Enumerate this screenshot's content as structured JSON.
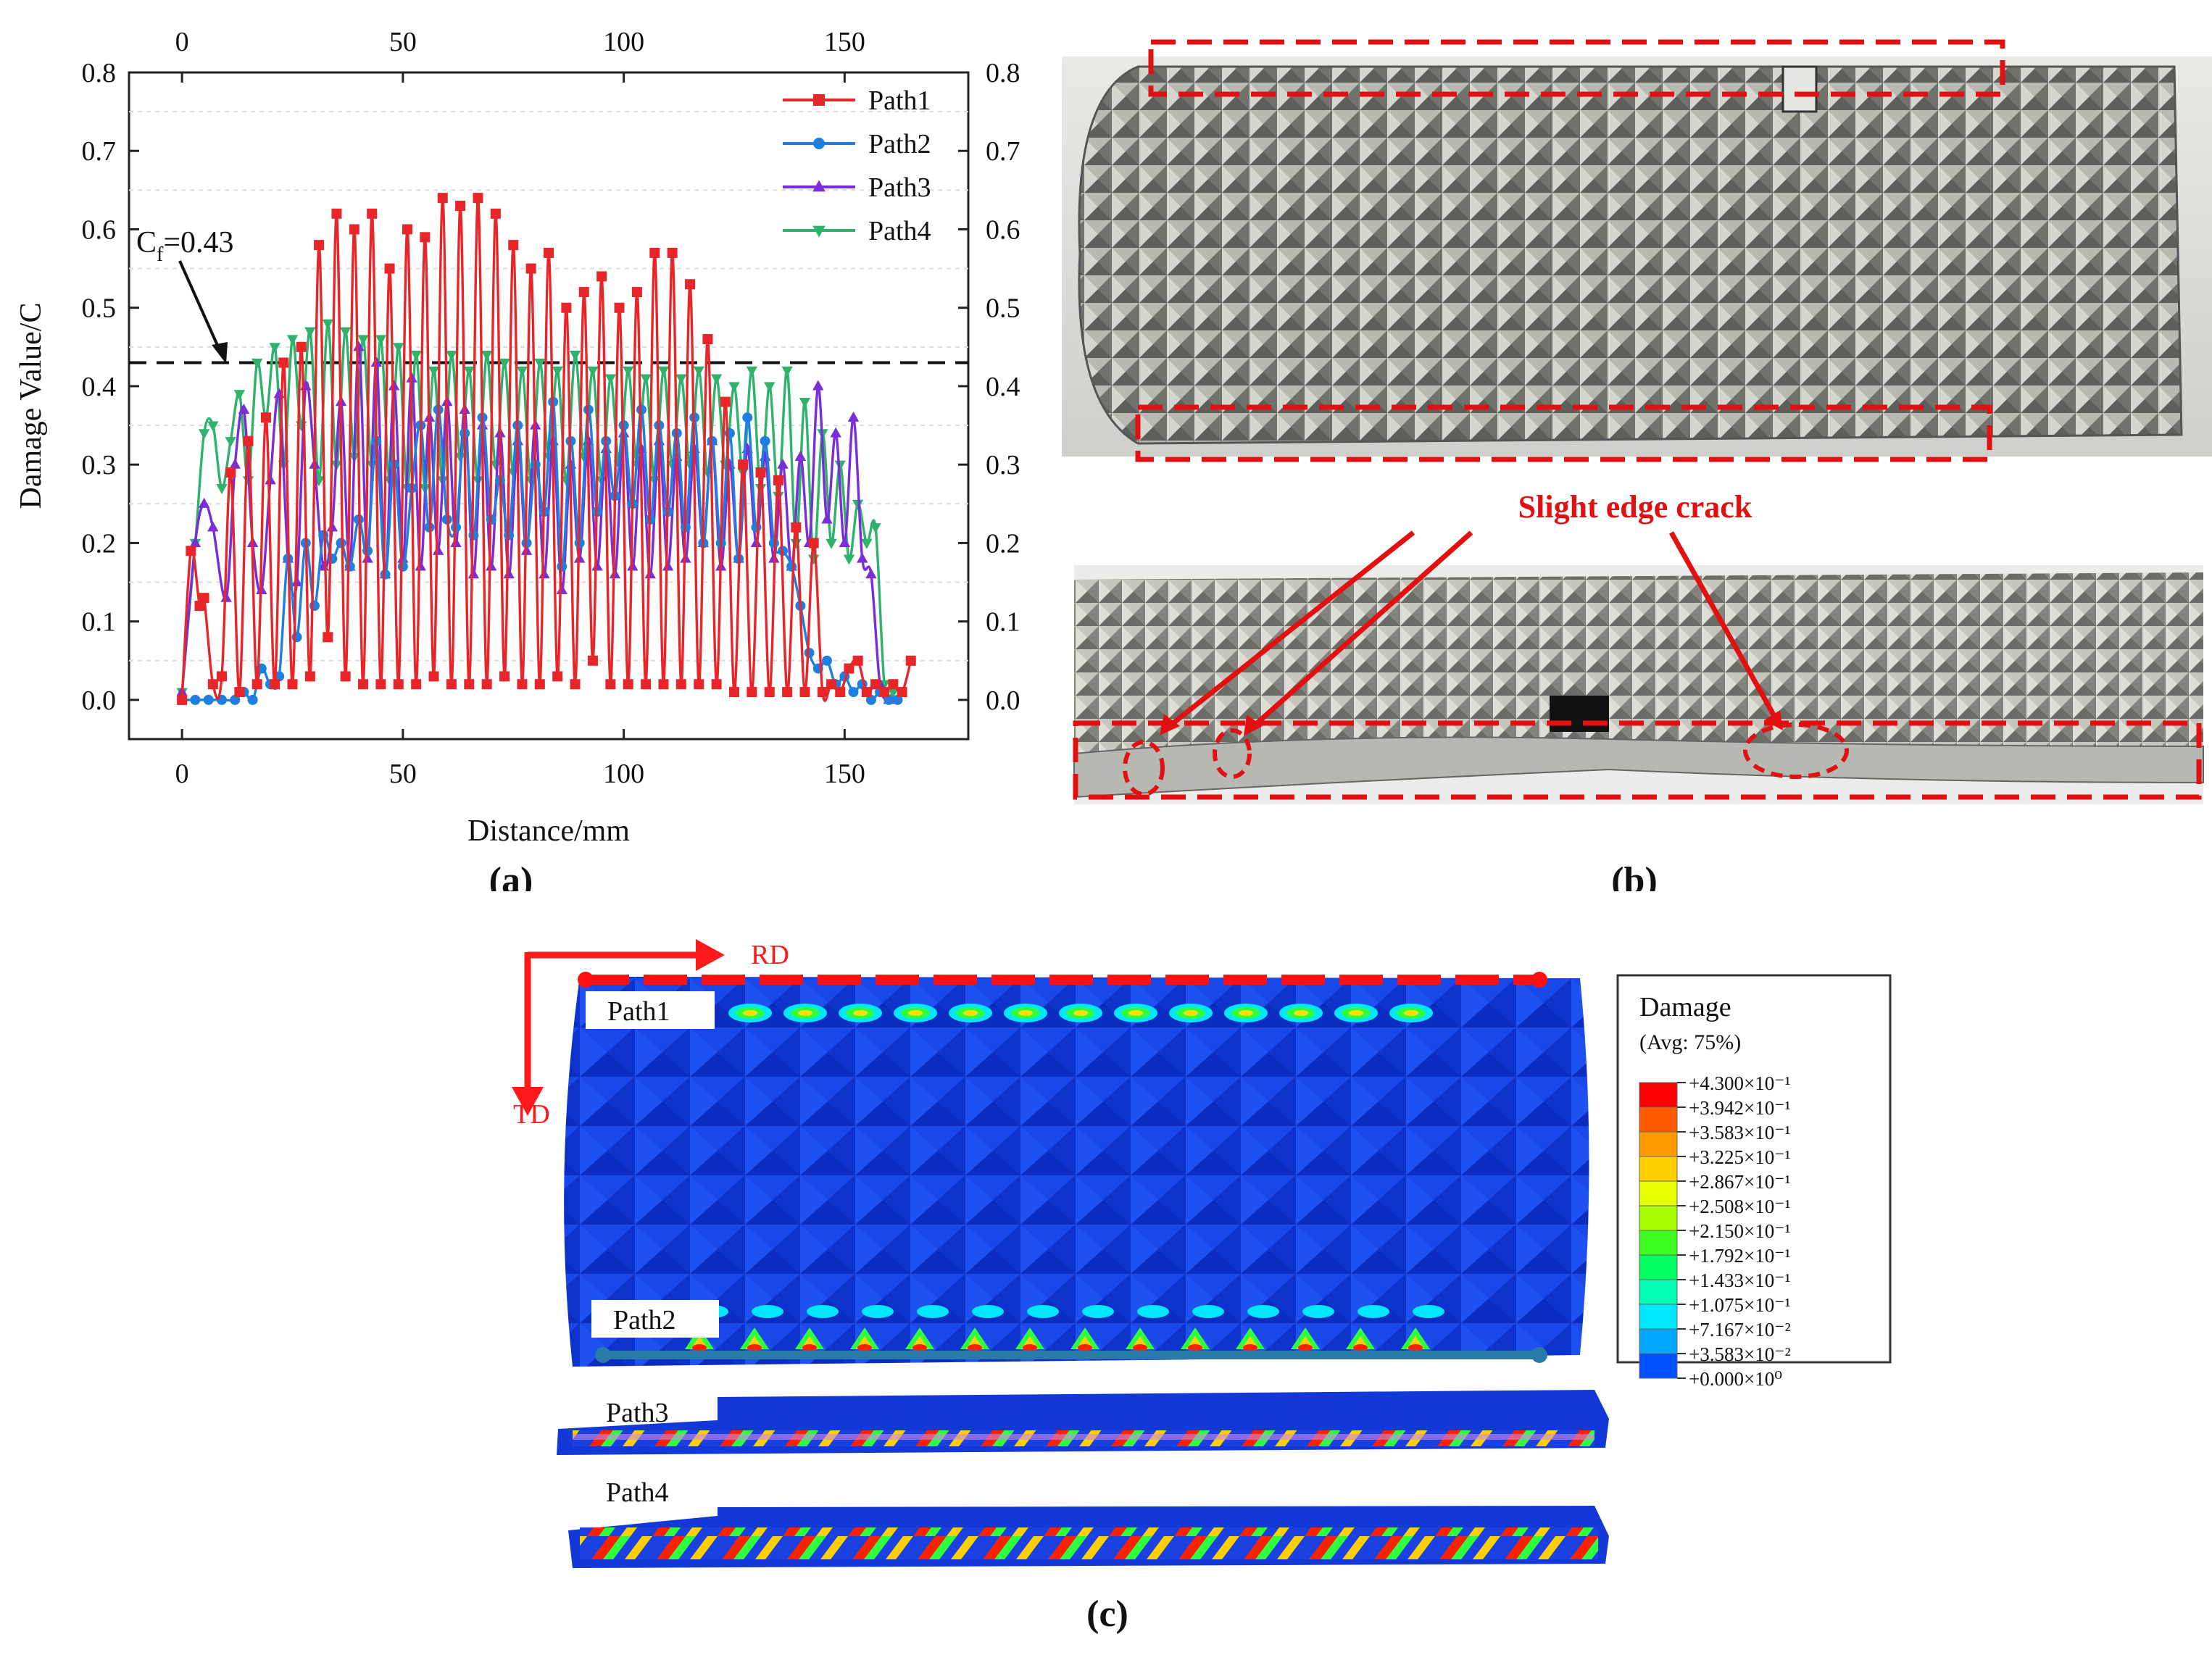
{
  "panel_labels": {
    "a": "(a)",
    "b": "(b)",
    "c": "(c)"
  },
  "chart_data": {
    "type": "line",
    "title": "",
    "xlabel": "Distance/mm",
    "ylabel": "Damage Value/C",
    "xlim": [
      -12,
      178
    ],
    "ylim": [
      -0.05,
      0.8
    ],
    "x_ticks": [
      "0",
      "50",
      "100",
      "150"
    ],
    "x_tick_values": [
      0,
      50,
      100,
      150
    ],
    "y_ticks": [
      "0.0",
      "0.1",
      "0.2",
      "0.3",
      "0.4",
      "0.5",
      "0.6",
      "0.7",
      "0.8"
    ],
    "y_tick_values": [
      0,
      0.1,
      0.2,
      0.3,
      0.4,
      0.5,
      0.6,
      0.7,
      0.8
    ],
    "threshold": {
      "value": 0.43,
      "label_main": "C",
      "label_sub": "f",
      "label_rest": "=0.43"
    },
    "legend_position": "top-right",
    "series": [
      {
        "name": "Path1",
        "color": "#e8262a",
        "marker": "square",
        "x": [
          0,
          2,
          4,
          5,
          7,
          9,
          11,
          13,
          15,
          17,
          19,
          21,
          23,
          25,
          27,
          29,
          31,
          33,
          35,
          37,
          39,
          41,
          43,
          45,
          47,
          49,
          51,
          53,
          55,
          57,
          59,
          61,
          63,
          65,
          67,
          69,
          71,
          73,
          75,
          77,
          79,
          81,
          83,
          85,
          87,
          89,
          91,
          93,
          95,
          97,
          99,
          101,
          103,
          105,
          107,
          109,
          111,
          113,
          115,
          117,
          119,
          121,
          123,
          125,
          127,
          129,
          131,
          133,
          135,
          137,
          139,
          141,
          143,
          145,
          147,
          149,
          151,
          153,
          155,
          157,
          159,
          161,
          163,
          165
        ],
        "values": [
          0,
          0.19,
          0.12,
          0.13,
          0.02,
          0.03,
          0.29,
          0.01,
          0.33,
          0.02,
          0.36,
          0.02,
          0.43,
          0.02,
          0.45,
          0.03,
          0.58,
          0.08,
          0.62,
          0.03,
          0.6,
          0.02,
          0.62,
          0.02,
          0.55,
          0.02,
          0.6,
          0.02,
          0.59,
          0.03,
          0.64,
          0.02,
          0.63,
          0.02,
          0.64,
          0.02,
          0.62,
          0.03,
          0.58,
          0.02,
          0.55,
          0.02,
          0.57,
          0.03,
          0.5,
          0.02,
          0.52,
          0.05,
          0.54,
          0.02,
          0.5,
          0.02,
          0.52,
          0.02,
          0.57,
          0.02,
          0.57,
          0.02,
          0.53,
          0.02,
          0.46,
          0.02,
          0.38,
          0.01,
          0.3,
          0.01,
          0.29,
          0.01,
          0.28,
          0.01,
          0.22,
          0.01,
          0.2,
          0.01,
          0.02,
          0.01,
          0.04,
          0.05,
          0.01,
          0.02,
          0.01,
          0.02,
          0.01,
          0.05
        ]
      },
      {
        "name": "Path2",
        "color": "#1e7fe0",
        "marker": "circle",
        "x": [
          0,
          3,
          6,
          9,
          12,
          14,
          16,
          18,
          20,
          22,
          24,
          26,
          28,
          30,
          32,
          34,
          36,
          38,
          40,
          42,
          44,
          46,
          48,
          50,
          52,
          54,
          56,
          58,
          60,
          62,
          64,
          66,
          68,
          70,
          72,
          74,
          76,
          78,
          80,
          82,
          84,
          86,
          88,
          90,
          92,
          94,
          96,
          98,
          100,
          102,
          104,
          106,
          108,
          110,
          112,
          114,
          116,
          118,
          120,
          122,
          124,
          126,
          128,
          130,
          132,
          134,
          136,
          138,
          140,
          142,
          144,
          146,
          148,
          150,
          152,
          154,
          156,
          158,
          160,
          162
        ],
        "values": [
          0,
          0,
          0,
          0,
          0,
          0.01,
          0,
          0.04,
          0.02,
          0.03,
          0.18,
          0.08,
          0.2,
          0.12,
          0.21,
          0.18,
          0.2,
          0.17,
          0.23,
          0.19,
          0.33,
          0.16,
          0.3,
          0.17,
          0.27,
          0.35,
          0.22,
          0.37,
          0.23,
          0.22,
          0.34,
          0.21,
          0.36,
          0.23,
          0.28,
          0.21,
          0.35,
          0.2,
          0.3,
          0.24,
          0.38,
          0.17,
          0.33,
          0.2,
          0.37,
          0.24,
          0.33,
          0.26,
          0.35,
          0.25,
          0.37,
          0.23,
          0.35,
          0.24,
          0.34,
          0.22,
          0.36,
          0.2,
          0.33,
          0.2,
          0.34,
          0.18,
          0.36,
          0.22,
          0.33,
          0.2,
          0.19,
          0.17,
          0.12,
          0.06,
          0.04,
          0.05,
          0.02,
          0.03,
          0.01,
          0.02,
          0,
          0.01,
          0,
          0
        ]
      },
      {
        "name": "Path3",
        "color": "#7a2ed8",
        "marker": "triangle-up",
        "x": [
          0,
          3,
          5,
          7,
          10,
          12,
          14,
          16,
          18,
          20,
          22,
          24,
          26,
          28,
          30,
          32,
          34,
          36,
          38,
          40,
          42,
          44,
          46,
          48,
          50,
          52,
          54,
          56,
          58,
          60,
          62,
          64,
          66,
          68,
          70,
          72,
          74,
          76,
          78,
          80,
          82,
          84,
          86,
          88,
          90,
          92,
          94,
          96,
          98,
          100,
          102,
          104,
          106,
          108,
          110,
          112,
          114,
          116,
          118,
          120,
          122,
          124,
          126,
          128,
          130,
          132,
          134,
          136,
          138,
          140,
          142,
          144,
          146,
          148,
          150,
          152,
          154,
          156,
          158,
          160
        ],
        "values": [
          0.01,
          0.2,
          0.25,
          0.22,
          0.13,
          0.3,
          0.37,
          0.2,
          0.14,
          0.28,
          0.39,
          0.18,
          0.15,
          0.4,
          0.3,
          0.17,
          0.22,
          0.38,
          0.17,
          0.45,
          0.18,
          0.43,
          0.16,
          0.4,
          0.18,
          0.41,
          0.17,
          0.36,
          0.19,
          0.38,
          0.2,
          0.37,
          0.16,
          0.35,
          0.17,
          0.34,
          0.16,
          0.33,
          0.19,
          0.35,
          0.16,
          0.33,
          0.14,
          0.3,
          0.18,
          0.33,
          0.17,
          0.32,
          0.16,
          0.34,
          0.17,
          0.32,
          0.16,
          0.33,
          0.17,
          0.31,
          0.18,
          0.32,
          0.2,
          0.33,
          0.17,
          0.3,
          0.18,
          0.32,
          0.2,
          0.31,
          0.18,
          0.3,
          0.17,
          0.31,
          0.2,
          0.4,
          0.23,
          0.34,
          0.2,
          0.36,
          0.18,
          0.16,
          0.02,
          0
        ]
      },
      {
        "name": "Path4",
        "color": "#2fb26b",
        "marker": "triangle-down",
        "x": [
          0,
          3,
          5,
          7,
          9,
          11,
          13,
          15,
          17,
          19,
          21,
          23,
          25,
          27,
          29,
          31,
          33,
          35,
          37,
          39,
          41,
          43,
          45,
          47,
          49,
          51,
          53,
          55,
          57,
          59,
          61,
          63,
          65,
          67,
          69,
          71,
          73,
          75,
          77,
          79,
          81,
          83,
          85,
          87,
          89,
          91,
          93,
          95,
          97,
          99,
          101,
          103,
          105,
          107,
          109,
          111,
          113,
          115,
          117,
          119,
          121,
          123,
          125,
          127,
          129,
          131,
          133,
          135,
          137,
          139,
          141,
          143,
          145,
          147,
          149,
          151,
          153,
          155,
          157,
          159,
          161
        ],
        "values": [
          0.01,
          0.2,
          0.34,
          0.35,
          0.27,
          0.33,
          0.39,
          0.28,
          0.43,
          0.36,
          0.45,
          0.3,
          0.46,
          0.35,
          0.47,
          0.28,
          0.48,
          0.3,
          0.47,
          0.31,
          0.46,
          0.3,
          0.46,
          0.28,
          0.45,
          0.27,
          0.44,
          0.27,
          0.42,
          0.28,
          0.44,
          0.31,
          0.42,
          0.28,
          0.44,
          0.3,
          0.43,
          0.29,
          0.42,
          0.28,
          0.43,
          0.31,
          0.42,
          0.28,
          0.44,
          0.31,
          0.42,
          0.28,
          0.41,
          0.3,
          0.42,
          0.3,
          0.41,
          0.28,
          0.42,
          0.3,
          0.41,
          0.3,
          0.42,
          0.29,
          0.41,
          0.3,
          0.4,
          0.29,
          0.42,
          0.27,
          0.4,
          0.26,
          0.42,
          0.2,
          0.38,
          0.18,
          0.34,
          0.2,
          0.3,
          0.18,
          0.25,
          0.2,
          0.22,
          0.02,
          0.01
        ]
      }
    ]
  },
  "photo_b": {
    "crack_label": "Slight edge crack"
  },
  "sim_c": {
    "rd_label": "RD",
    "td_label": "TD",
    "path_labels": [
      "Path1",
      "Path2",
      "Path3",
      "Path4"
    ],
    "legend": {
      "title": "Damage",
      "subtitle": "(Avg: 75%)",
      "entries": [
        "+4.300×10⁻¹",
        "+3.942×10⁻¹",
        "+3.583×10⁻¹",
        "+3.225×10⁻¹",
        "+2.867×10⁻¹",
        "+2.508×10⁻¹",
        "+2.150×10⁻¹",
        "+1.792×10⁻¹",
        "+1.433×10⁻¹",
        "+1.075×10⁻¹",
        "+7.167×10⁻²",
        "+3.583×10⁻²",
        "+0.000×10⁰"
      ],
      "colors": [
        "#ff0000",
        "#ff5a00",
        "#ff9a00",
        "#ffd000",
        "#e8ff00",
        "#a8ff00",
        "#3cff20",
        "#00ff60",
        "#00ffb0",
        "#00e8ff",
        "#00a8ff",
        "#0050ff",
        "#0000ff"
      ]
    }
  }
}
